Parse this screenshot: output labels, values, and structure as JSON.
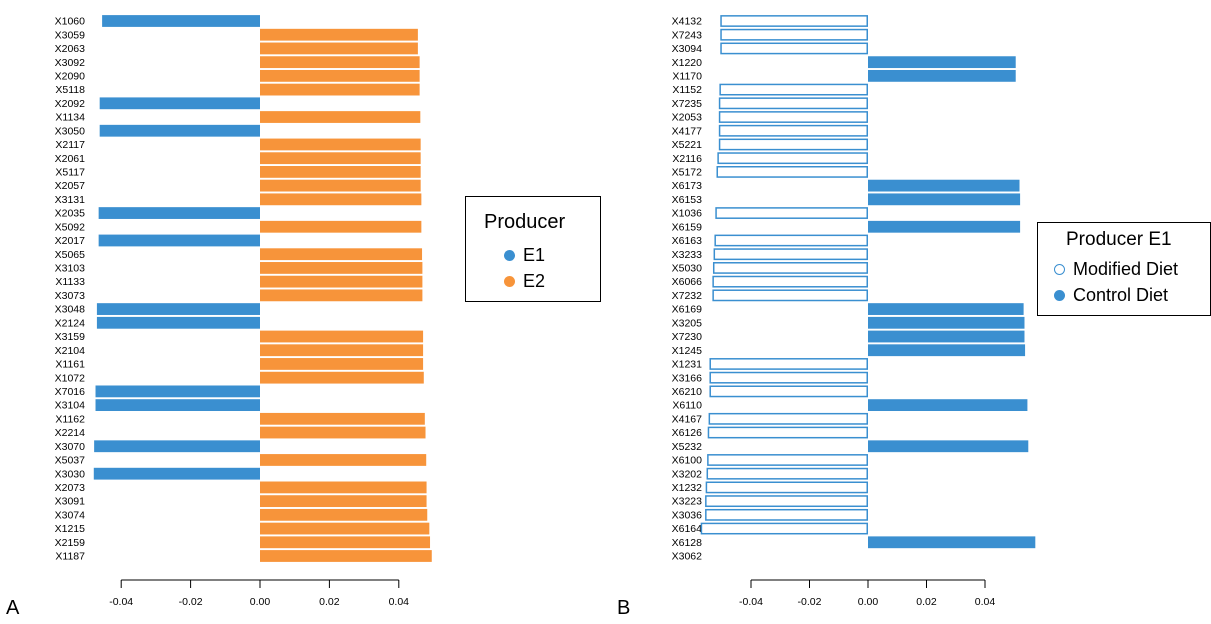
{
  "panels": {
    "a": "A",
    "b": "B"
  },
  "colors": {
    "e1": "#3a8fd0",
    "e2": "#f7943a",
    "outline": "#3a8fd0"
  },
  "legend_a": {
    "title": "Producer",
    "items": [
      {
        "label": "E1"
      },
      {
        "label": "E2"
      }
    ]
  },
  "legend_b": {
    "title": "Producer E1",
    "items": [
      {
        "label": "Modified Diet"
      },
      {
        "label": "Control Diet"
      }
    ]
  },
  "chart_data": [
    {
      "type": "bar",
      "orientation": "horizontal",
      "panel": "A",
      "xlim": [
        -0.045,
        0.05
      ],
      "xticks": [
        "-0.04",
        "-0.02",
        "0.00",
        "0.02",
        "0.04"
      ],
      "tick_values": [
        -0.04,
        -0.02,
        0.0,
        0.02,
        0.04
      ],
      "categories": [
        "X1060",
        "X3059",
        "X2063",
        "X3092",
        "X2090",
        "X5118",
        "X2092",
        "X1134",
        "X3050",
        "X2117",
        "X2061",
        "X5117",
        "X2057",
        "X3131",
        "X2035",
        "X5092",
        "X2017",
        "X5065",
        "X3103",
        "X1133",
        "X3073",
        "X3048",
        "X2124",
        "X3159",
        "X2104",
        "X1161",
        "X1072",
        "X7016",
        "X3104",
        "X1162",
        "X2214",
        "X3070",
        "X5037",
        "X3030",
        "X2073",
        "X3091",
        "X3074",
        "X1215",
        "X2159",
        "X1187"
      ],
      "values": [
        -0.0455,
        0.0455,
        0.0455,
        0.046,
        0.046,
        0.046,
        -0.0462,
        0.0462,
        -0.0462,
        0.0463,
        0.0463,
        0.0463,
        0.0463,
        0.0465,
        -0.0465,
        0.0465,
        -0.0465,
        0.0467,
        0.0468,
        0.0468,
        0.0468,
        -0.047,
        -0.047,
        0.047,
        0.047,
        0.047,
        0.0472,
        -0.0474,
        -0.0474,
        0.0475,
        0.0477,
        -0.0478,
        0.0479,
        -0.0479,
        0.048,
        0.048,
        0.0482,
        0.0488,
        0.049,
        0.0495
      ],
      "groups": [
        "E1",
        "E2",
        "E2",
        "E2",
        "E2",
        "E2",
        "E1",
        "E2",
        "E1",
        "E2",
        "E2",
        "E2",
        "E2",
        "E2",
        "E1",
        "E2",
        "E1",
        "E2",
        "E2",
        "E2",
        "E2",
        "E1",
        "E1",
        "E2",
        "E2",
        "E2",
        "E2",
        "E1",
        "E1",
        "E2",
        "E2",
        "E1",
        "E2",
        "E1",
        "E2",
        "E2",
        "E2",
        "E2",
        "E2",
        "E2"
      ],
      "legend": "right"
    },
    {
      "type": "bar",
      "orientation": "horizontal",
      "panel": "B",
      "xlim": [
        -0.045,
        0.05
      ],
      "xticks": [
        "-0.04",
        "-0.02",
        "0.00",
        "0.02",
        "0.04"
      ],
      "tick_values": [
        -0.04,
        -0.02,
        0.0,
        0.02,
        0.04
      ],
      "categories": [
        "X4132",
        "X7243",
        "X3094",
        "X1220",
        "X1170",
        "X1152",
        "X7235",
        "X2053",
        "X4177",
        "X5221",
        "X2116",
        "X5172",
        "X6173",
        "X6153",
        "X1036",
        "X6159",
        "X6163",
        "X3233",
        "X5030",
        "X6066",
        "X7232",
        "X6169",
        "X3205",
        "X7230",
        "X1245",
        "X1231",
        "X3166",
        "X6210",
        "X6110",
        "X4167",
        "X6126",
        "X5232",
        "X6100",
        "X3202",
        "X1232",
        "X3223",
        "X3036",
        "X6164",
        "X6128",
        "X3062"
      ],
      "values": [
        -0.0505,
        -0.0505,
        -0.0505,
        0.0505,
        0.0505,
        -0.0508,
        -0.051,
        -0.051,
        -0.051,
        -0.051,
        -0.0515,
        -0.0518,
        0.0518,
        0.052,
        -0.0522,
        0.052,
        -0.0525,
        -0.0528,
        -0.053,
        -0.0532,
        -0.0532,
        0.0532,
        0.0535,
        0.0535,
        0.0537,
        -0.0542,
        -0.0542,
        -0.0542,
        0.0545,
        -0.0545,
        -0.0548,
        0.0548,
        -0.055,
        -0.0552,
        -0.0555,
        -0.0557,
        -0.0557,
        -0.0572,
        0.0572,
        null
      ],
      "groups": [
        "Modified Diet",
        "Modified Diet",
        "Modified Diet",
        "Control Diet",
        "Control Diet",
        "Modified Diet",
        "Modified Diet",
        "Modified Diet",
        "Modified Diet",
        "Modified Diet",
        "Modified Diet",
        "Modified Diet",
        "Control Diet",
        "Control Diet",
        "Modified Diet",
        "Control Diet",
        "Modified Diet",
        "Modified Diet",
        "Modified Diet",
        "Modified Diet",
        "Modified Diet",
        "Control Diet",
        "Control Diet",
        "Control Diet",
        "Control Diet",
        "Modified Diet",
        "Modified Diet",
        "Modified Diet",
        "Control Diet",
        "Modified Diet",
        "Modified Diet",
        "Control Diet",
        "Modified Diet",
        "Modified Diet",
        "Modified Diet",
        "Modified Diet",
        "Modified Diet",
        "Modified Diet",
        "Control Diet",
        null
      ],
      "legend": "right"
    }
  ]
}
